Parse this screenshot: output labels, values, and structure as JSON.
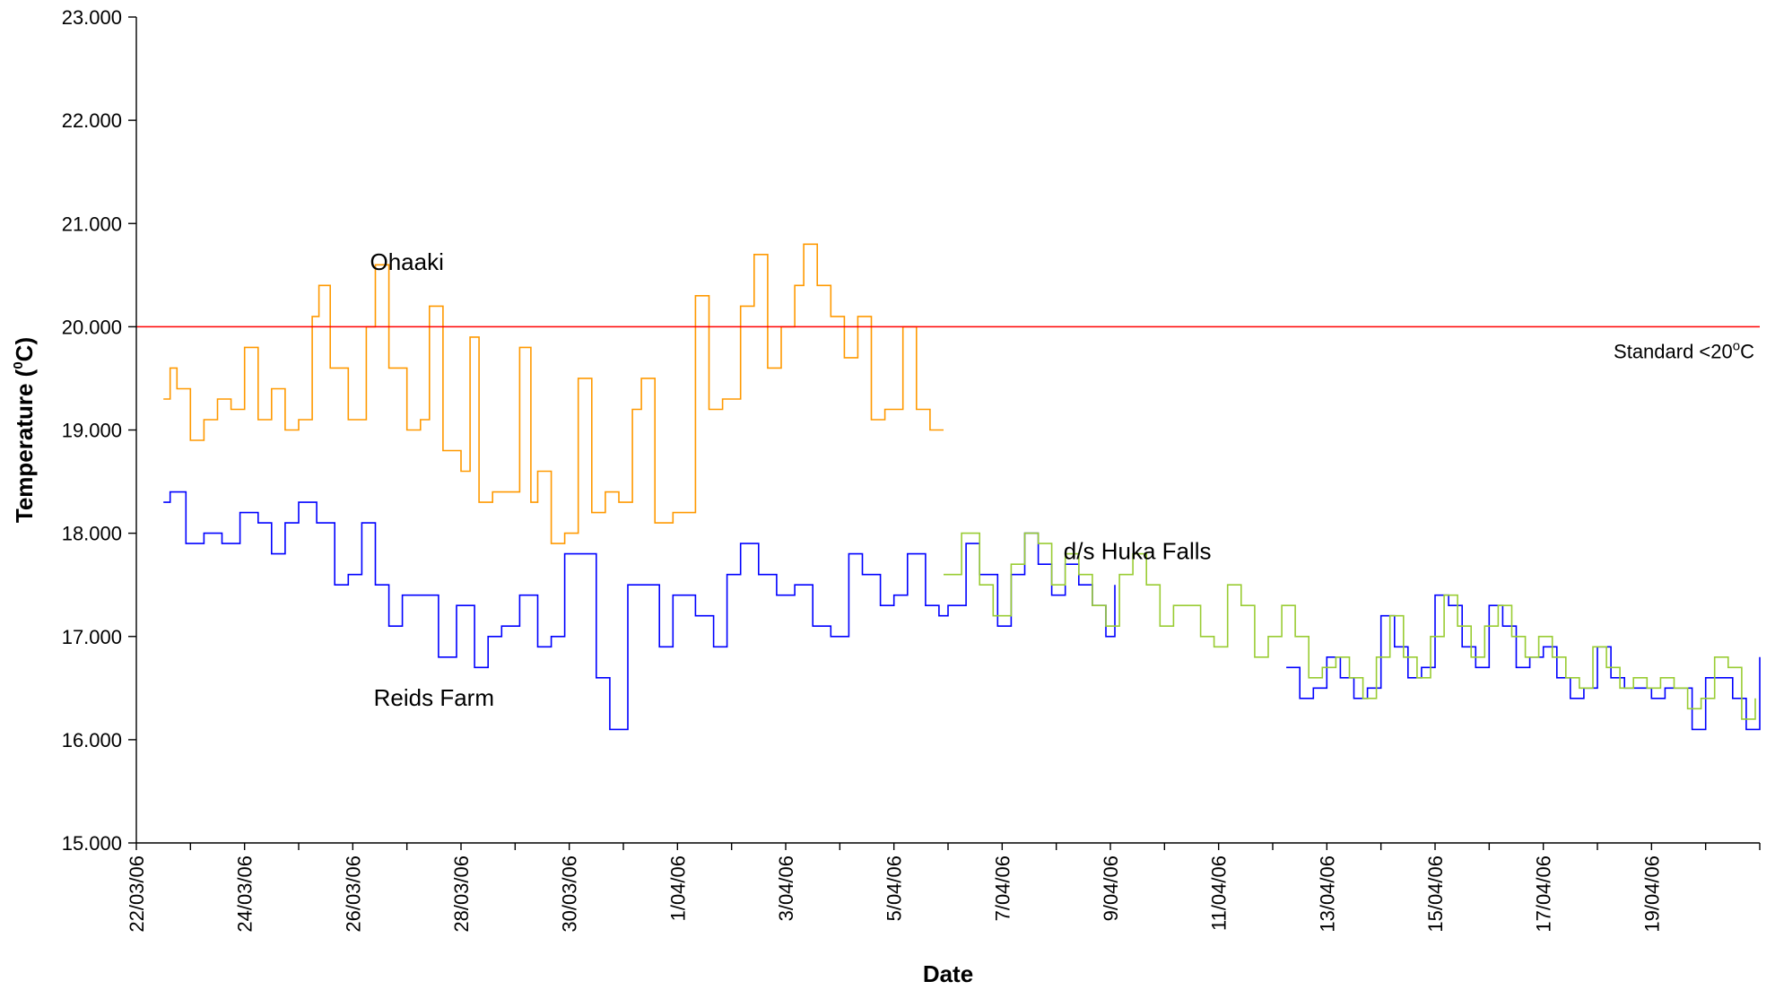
{
  "chart_data": {
    "type": "line",
    "xlabel": "Date",
    "ylabel": {
      "prefix": "Temperature (",
      "sup": "0",
      "suffix": "C)"
    },
    "ylim": [
      15,
      23
    ],
    "xlim": [
      "2006-03-22",
      "2006-04-21"
    ],
    "grid": false,
    "legend": "none",
    "y_ticks": [
      "15.000",
      "16.000",
      "17.000",
      "18.000",
      "19.000",
      "20.000",
      "21.000",
      "22.000",
      "23.000"
    ],
    "x_ticks": [
      {
        "date": "2006-03-22",
        "label": "22/03/06"
      },
      {
        "date": "2006-03-24",
        "label": "24/03/06"
      },
      {
        "date": "2006-03-26",
        "label": "26/03/06"
      },
      {
        "date": "2006-03-28",
        "label": "28/03/06"
      },
      {
        "date": "2006-03-30",
        "label": "30/03/06"
      },
      {
        "date": "2006-04-01",
        "label": "1/04/06"
      },
      {
        "date": "2006-04-03",
        "label": "3/04/06"
      },
      {
        "date": "2006-04-05",
        "label": "5/04/06"
      },
      {
        "date": "2006-04-07",
        "label": "7/04/06"
      },
      {
        "date": "2006-04-09",
        "label": "9/04/06"
      },
      {
        "date": "2006-04-11",
        "label": "11/04/06"
      },
      {
        "date": "2006-04-13",
        "label": "13/04/06"
      },
      {
        "date": "2006-04-15",
        "label": "15/04/06"
      },
      {
        "date": "2006-04-17",
        "label": "17/04/06"
      },
      {
        "date": "2006-04-19",
        "label": "19/04/06"
      }
    ],
    "standard": {
      "value": 20,
      "color": "#ff0000",
      "label_prefix": "Standard <20",
      "label_sup": "o",
      "label_suffix": "C"
    },
    "annotations": [
      {
        "text": "Ohaaki",
        "date": "2006-03-27 00:00",
        "y": 20.55
      },
      {
        "text": "Reids Farm",
        "date": "2006-03-27 12:00",
        "y": 16.33
      },
      {
        "text": "d/s Huka Falls",
        "date": "2006-04-09 12:00",
        "y": 17.75
      }
    ],
    "series": [
      {
        "color": "#ff9900",
        "points": [
          [
            "2006-03-22 12:00",
            19.3
          ],
          [
            "2006-03-22 15:00",
            19.6
          ],
          [
            "2006-03-22 18:00",
            19.4
          ],
          [
            "2006-03-23 00:00",
            18.9
          ],
          [
            "2006-03-23 06:00",
            19.1
          ],
          [
            "2006-03-23 12:00",
            19.3
          ],
          [
            "2006-03-23 18:00",
            19.2
          ],
          [
            "2006-03-24 00:00",
            19.8
          ],
          [
            "2006-03-24 06:00",
            19.1
          ],
          [
            "2006-03-24 12:00",
            19.4
          ],
          [
            "2006-03-24 18:00",
            19.0
          ],
          [
            "2006-03-25 00:00",
            19.1
          ],
          [
            "2006-03-25 06:00",
            20.1
          ],
          [
            "2006-03-25 09:00",
            20.4
          ],
          [
            "2006-03-25 14:00",
            19.6
          ],
          [
            "2006-03-25 22:00",
            19.1
          ],
          [
            "2006-03-26 06:00",
            20.0
          ],
          [
            "2006-03-26 10:00",
            20.6
          ],
          [
            "2006-03-26 16:00",
            19.6
          ],
          [
            "2006-03-27 00:00",
            19.0
          ],
          [
            "2006-03-27 06:00",
            19.1
          ],
          [
            "2006-03-27 10:00",
            20.2
          ],
          [
            "2006-03-27 16:00",
            18.8
          ],
          [
            "2006-03-28 00:00",
            18.6
          ],
          [
            "2006-03-28 04:00",
            19.9
          ],
          [
            "2006-03-28 08:00",
            18.3
          ],
          [
            "2006-03-28 14:00",
            18.4
          ],
          [
            "2006-03-28 20:00",
            18.4
          ],
          [
            "2006-03-29 02:00",
            19.8
          ],
          [
            "2006-03-29 07:00",
            18.3
          ],
          [
            "2006-03-29 10:00",
            18.6
          ],
          [
            "2006-03-29 16:00",
            17.9
          ],
          [
            "2006-03-29 22:00",
            18.0
          ],
          [
            "2006-03-30 04:00",
            19.5
          ],
          [
            "2006-03-30 10:00",
            18.2
          ],
          [
            "2006-03-30 16:00",
            18.4
          ],
          [
            "2006-03-30 22:00",
            18.3
          ],
          [
            "2006-03-31 04:00",
            19.2
          ],
          [
            "2006-03-31 08:00",
            19.5
          ],
          [
            "2006-03-31 14:00",
            18.1
          ],
          [
            "2006-03-31 22:00",
            18.2
          ],
          [
            "2006-04-01 08:00",
            20.3
          ],
          [
            "2006-04-01 14:00",
            19.2
          ],
          [
            "2006-04-01 20:00",
            19.3
          ],
          [
            "2006-04-02 04:00",
            20.2
          ],
          [
            "2006-04-02 10:00",
            20.7
          ],
          [
            "2006-04-02 16:00",
            19.6
          ],
          [
            "2006-04-02 22:00",
            20.0
          ],
          [
            "2006-04-03 04:00",
            20.4
          ],
          [
            "2006-04-03 08:00",
            20.8
          ],
          [
            "2006-04-03 14:00",
            20.4
          ],
          [
            "2006-04-03 20:00",
            20.1
          ],
          [
            "2006-04-04 02:00",
            19.7
          ],
          [
            "2006-04-04 08:00",
            20.1
          ],
          [
            "2006-04-04 14:00",
            19.1
          ],
          [
            "2006-04-04 20:00",
            19.2
          ],
          [
            "2006-04-05 04:00",
            20.0
          ],
          [
            "2006-04-05 10:00",
            19.2
          ],
          [
            "2006-04-05 16:00",
            19.0
          ],
          [
            "2006-04-05 22:00",
            19.0
          ]
        ]
      },
      {
        "color": "#0000ff",
        "points": [
          [
            "2006-03-22 12:00",
            18.3
          ],
          [
            "2006-03-22 15:00",
            18.4
          ],
          [
            "2006-03-22 22:00",
            17.9
          ],
          [
            "2006-03-23 06:00",
            18.0
          ],
          [
            "2006-03-23 14:00",
            17.9
          ],
          [
            "2006-03-23 22:00",
            18.2
          ],
          [
            "2006-03-24 06:00",
            18.1
          ],
          [
            "2006-03-24 12:00",
            17.8
          ],
          [
            "2006-03-24 18:00",
            18.1
          ],
          [
            "2006-03-25 00:00",
            18.3
          ],
          [
            "2006-03-25 08:00",
            18.1
          ],
          [
            "2006-03-25 16:00",
            17.5
          ],
          [
            "2006-03-25 22:00",
            17.6
          ],
          [
            "2006-03-26 04:00",
            18.1
          ],
          [
            "2006-03-26 10:00",
            17.5
          ],
          [
            "2006-03-26 16:00",
            17.1
          ],
          [
            "2006-03-26 22:00",
            17.4
          ],
          [
            "2006-03-27 06:00",
            17.4
          ],
          [
            "2006-03-27 14:00",
            16.8
          ],
          [
            "2006-03-27 22:00",
            17.3
          ],
          [
            "2006-03-28 06:00",
            16.7
          ],
          [
            "2006-03-28 12:00",
            17.0
          ],
          [
            "2006-03-28 18:00",
            17.1
          ],
          [
            "2006-03-29 02:00",
            17.4
          ],
          [
            "2006-03-29 10:00",
            16.9
          ],
          [
            "2006-03-29 16:00",
            17.0
          ],
          [
            "2006-03-29 22:00",
            17.8
          ],
          [
            "2006-03-30 06:00",
            17.8
          ],
          [
            "2006-03-30 12:00",
            16.6
          ],
          [
            "2006-03-30 18:00",
            16.1
          ],
          [
            "2006-03-31 02:00",
            17.5
          ],
          [
            "2006-03-31 08:00",
            17.5
          ],
          [
            "2006-03-31 16:00",
            16.9
          ],
          [
            "2006-03-31 22:00",
            17.4
          ],
          [
            "2006-04-01 08:00",
            17.2
          ],
          [
            "2006-04-01 16:00",
            16.9
          ],
          [
            "2006-04-01 22:00",
            17.6
          ],
          [
            "2006-04-02 04:00",
            17.9
          ],
          [
            "2006-04-02 12:00",
            17.6
          ],
          [
            "2006-04-02 20:00",
            17.4
          ],
          [
            "2006-04-03 04:00",
            17.5
          ],
          [
            "2006-04-03 12:00",
            17.1
          ],
          [
            "2006-04-03 20:00",
            17.0
          ],
          [
            "2006-04-04 04:00",
            17.8
          ],
          [
            "2006-04-04 10:00",
            17.6
          ],
          [
            "2006-04-04 18:00",
            17.3
          ],
          [
            "2006-04-05 00:00",
            17.4
          ],
          [
            "2006-04-05 06:00",
            17.8
          ],
          [
            "2006-04-05 14:00",
            17.3
          ],
          [
            "2006-04-05 20:00",
            17.2
          ],
          [
            "2006-04-06 00:00",
            17.3
          ],
          [
            "2006-04-06 08:00",
            17.9
          ],
          [
            "2006-04-06 14:00",
            17.6
          ],
          [
            "2006-04-06 22:00",
            17.1
          ],
          [
            "2006-04-07 04:00",
            17.6
          ],
          [
            "2006-04-07 10:00",
            18.0
          ],
          [
            "2006-04-07 16:00",
            17.7
          ],
          [
            "2006-04-07 22:00",
            17.4
          ],
          [
            "2006-04-08 04:00",
            17.7
          ],
          [
            "2006-04-08 10:00",
            17.5
          ],
          [
            "2006-04-08 16:00",
            17.3
          ],
          [
            "2006-04-08 22:00",
            17.0
          ],
          [
            "2006-04-09 02:00",
            17.5
          ],
          null,
          [
            "2006-04-12 06:00",
            16.7
          ],
          [
            "2006-04-12 12:00",
            16.4
          ],
          [
            "2006-04-12 18:00",
            16.5
          ],
          [
            "2006-04-13 00:00",
            16.8
          ],
          [
            "2006-04-13 06:00",
            16.6
          ],
          [
            "2006-04-13 12:00",
            16.4
          ],
          [
            "2006-04-13 18:00",
            16.5
          ],
          [
            "2006-04-14 00:00",
            17.2
          ],
          [
            "2006-04-14 06:00",
            16.9
          ],
          [
            "2006-04-14 12:00",
            16.6
          ],
          [
            "2006-04-14 18:00",
            16.7
          ],
          [
            "2006-04-15 00:00",
            17.4
          ],
          [
            "2006-04-15 06:00",
            17.3
          ],
          [
            "2006-04-15 12:00",
            16.9
          ],
          [
            "2006-04-15 18:00",
            16.7
          ],
          [
            "2006-04-16 00:00",
            17.3
          ],
          [
            "2006-04-16 06:00",
            17.1
          ],
          [
            "2006-04-16 12:00",
            16.7
          ],
          [
            "2006-04-16 18:00",
            16.8
          ],
          [
            "2006-04-17 00:00",
            16.9
          ],
          [
            "2006-04-17 06:00",
            16.6
          ],
          [
            "2006-04-17 12:00",
            16.4
          ],
          [
            "2006-04-17 18:00",
            16.5
          ],
          [
            "2006-04-18 00:00",
            16.9
          ],
          [
            "2006-04-18 06:00",
            16.6
          ],
          [
            "2006-04-18 12:00",
            16.5
          ],
          [
            "2006-04-18 18:00",
            16.5
          ],
          [
            "2006-04-19 00:00",
            16.4
          ],
          [
            "2006-04-19 06:00",
            16.5
          ],
          [
            "2006-04-19 12:00",
            16.5
          ],
          [
            "2006-04-19 18:00",
            16.1
          ],
          [
            "2006-04-20 00:00",
            16.6
          ],
          [
            "2006-04-20 06:00",
            16.6
          ],
          [
            "2006-04-20 12:00",
            16.4
          ],
          [
            "2006-04-20 18:00",
            16.1
          ],
          [
            "2006-04-21 00:00",
            16.8
          ]
        ]
      },
      {
        "color": "#99cc33",
        "points": [
          [
            "2006-04-05 22:00",
            17.6
          ],
          [
            "2006-04-06 06:00",
            18.0
          ],
          [
            "2006-04-06 14:00",
            17.5
          ],
          [
            "2006-04-06 20:00",
            17.2
          ],
          [
            "2006-04-07 04:00",
            17.7
          ],
          [
            "2006-04-07 10:00",
            18.0
          ],
          [
            "2006-04-07 16:00",
            17.9
          ],
          [
            "2006-04-07 22:00",
            17.5
          ],
          [
            "2006-04-08 04:00",
            17.8
          ],
          [
            "2006-04-08 10:00",
            17.6
          ],
          [
            "2006-04-08 16:00",
            17.3
          ],
          [
            "2006-04-08 22:00",
            17.1
          ],
          [
            "2006-04-09 04:00",
            17.6
          ],
          [
            "2006-04-09 10:00",
            17.8
          ],
          [
            "2006-04-09 16:00",
            17.5
          ],
          [
            "2006-04-09 22:00",
            17.1
          ],
          [
            "2006-04-10 04:00",
            17.3
          ],
          [
            "2006-04-10 10:00",
            17.3
          ],
          [
            "2006-04-10 16:00",
            17.0
          ],
          [
            "2006-04-10 22:00",
            16.9
          ],
          [
            "2006-04-11 04:00",
            17.5
          ],
          [
            "2006-04-11 10:00",
            17.3
          ],
          [
            "2006-04-11 16:00",
            16.8
          ],
          [
            "2006-04-11 22:00",
            17.0
          ],
          [
            "2006-04-12 04:00",
            17.3
          ],
          [
            "2006-04-12 10:00",
            17.0
          ],
          [
            "2006-04-12 16:00",
            16.6
          ],
          [
            "2006-04-12 22:00",
            16.7
          ],
          [
            "2006-04-13 04:00",
            16.8
          ],
          [
            "2006-04-13 10:00",
            16.6
          ],
          [
            "2006-04-13 16:00",
            16.4
          ],
          [
            "2006-04-13 22:00",
            16.8
          ],
          [
            "2006-04-14 04:00",
            17.2
          ],
          [
            "2006-04-14 10:00",
            16.8
          ],
          [
            "2006-04-14 16:00",
            16.6
          ],
          [
            "2006-04-14 22:00",
            17.0
          ],
          [
            "2006-04-15 04:00",
            17.4
          ],
          [
            "2006-04-15 10:00",
            17.1
          ],
          [
            "2006-04-15 16:00",
            16.8
          ],
          [
            "2006-04-15 22:00",
            17.1
          ],
          [
            "2006-04-16 04:00",
            17.3
          ],
          [
            "2006-04-16 10:00",
            17.0
          ],
          [
            "2006-04-16 16:00",
            16.8
          ],
          [
            "2006-04-16 22:00",
            17.0
          ],
          [
            "2006-04-17 04:00",
            16.8
          ],
          [
            "2006-04-17 10:00",
            16.6
          ],
          [
            "2006-04-17 16:00",
            16.5
          ],
          [
            "2006-04-17 22:00",
            16.9
          ],
          [
            "2006-04-18 04:00",
            16.7
          ],
          [
            "2006-04-18 10:00",
            16.5
          ],
          [
            "2006-04-18 16:00",
            16.6
          ],
          [
            "2006-04-18 22:00",
            16.5
          ],
          [
            "2006-04-19 04:00",
            16.6
          ],
          [
            "2006-04-19 10:00",
            16.5
          ],
          [
            "2006-04-19 16:00",
            16.3
          ],
          [
            "2006-04-19 22:00",
            16.4
          ],
          [
            "2006-04-20 04:00",
            16.8
          ],
          [
            "2006-04-20 10:00",
            16.7
          ],
          [
            "2006-04-20 16:00",
            16.2
          ],
          [
            "2006-04-20 22:00",
            16.4
          ]
        ]
      }
    ]
  }
}
